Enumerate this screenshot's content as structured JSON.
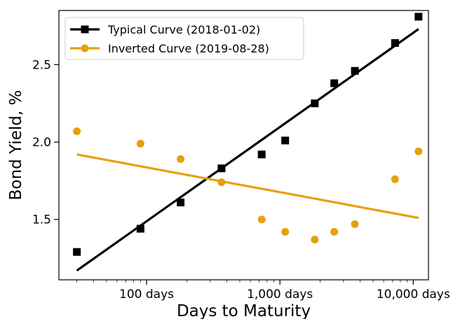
{
  "chart_data": {
    "type": "scatter",
    "title": "",
    "xlabel": "Days to Maturity",
    "ylabel": "Bond Yield, %",
    "x_scale": "log",
    "xlim": [
      22,
      13000
    ],
    "ylim": [
      1.11,
      2.85
    ],
    "grid": false,
    "legend_position": "top-left",
    "x_ticks": [
      {
        "value": 100,
        "label": "100 days"
      },
      {
        "value": 1000,
        "label": "1,000 days"
      },
      {
        "value": 10000,
        "label": "10,000 days"
      }
    ],
    "y_ticks": [
      {
        "value": 1.5,
        "label": "1.5"
      },
      {
        "value": 2.0,
        "label": "2.0"
      },
      {
        "value": 2.5,
        "label": "2.5"
      }
    ],
    "series": [
      {
        "name": "Typical Curve (2018-01-02)",
        "color": "#000000",
        "marker": "square",
        "x": [
          30,
          90,
          180,
          365,
          730,
          1095,
          1825,
          2555,
          3650,
          7300,
          10950
        ],
        "y": [
          1.29,
          1.44,
          1.61,
          1.83,
          1.92,
          2.01,
          2.25,
          2.38,
          2.46,
          2.64,
          2.81
        ],
        "fit": {
          "x": [
            30,
            10950
          ],
          "y": [
            1.17,
            2.73
          ]
        }
      },
      {
        "name": "Inverted Curve (2019-08-28)",
        "color": "#e6a00f",
        "marker": "circle",
        "x": [
          30,
          90,
          180,
          365,
          730,
          1095,
          1825,
          2555,
          3650,
          7300,
          10950
        ],
        "y": [
          2.07,
          1.99,
          1.89,
          1.74,
          1.5,
          1.42,
          1.37,
          1.42,
          1.47,
          1.76,
          1.94
        ],
        "fit": {
          "x": [
            30,
            10950
          ],
          "y": [
            1.92,
            1.51
          ]
        }
      }
    ]
  }
}
